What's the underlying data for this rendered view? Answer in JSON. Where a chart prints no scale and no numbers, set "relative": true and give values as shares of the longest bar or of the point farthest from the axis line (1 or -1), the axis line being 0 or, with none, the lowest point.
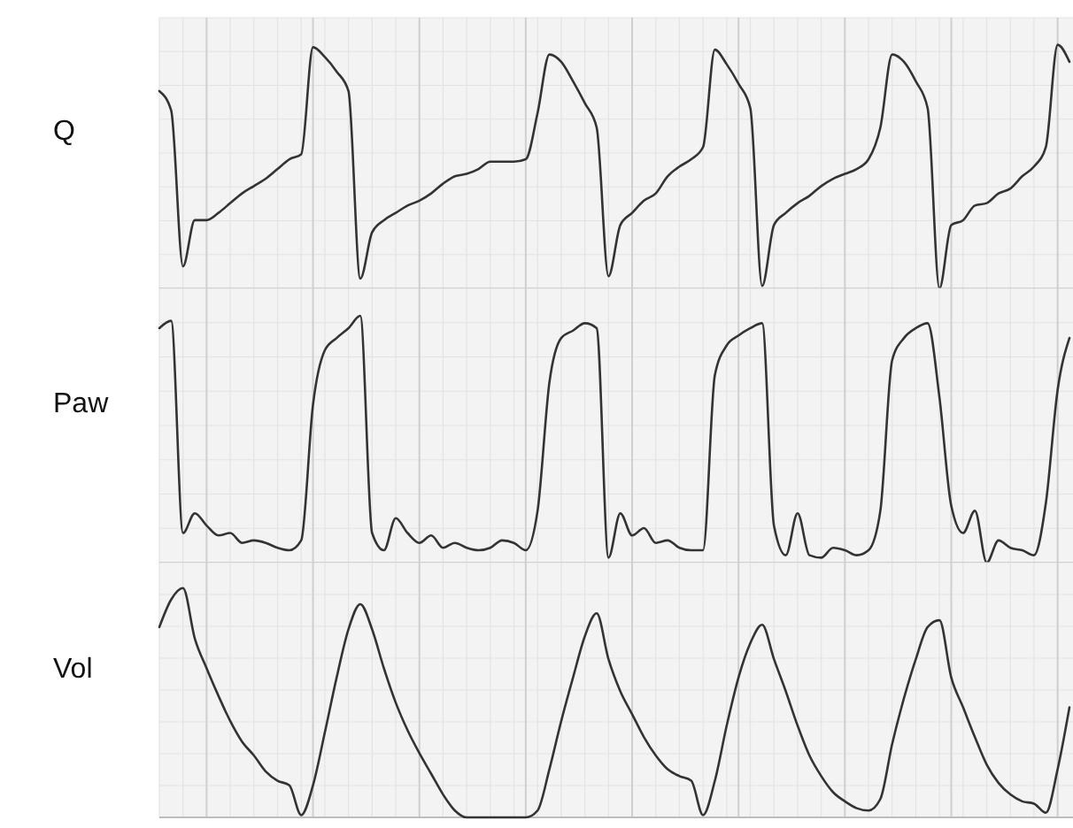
{
  "chart_data": [
    {
      "type": "line",
      "ylabel": "Q",
      "relative": true,
      "grid": true,
      "categories": [
        null,
        null,
        null,
        null,
        null,
        null,
        null,
        null,
        null,
        null,
        null,
        null,
        null,
        null,
        null,
        null,
        null,
        null,
        null,
        null,
        null,
        null,
        null,
        null,
        null,
        null,
        null,
        null,
        null,
        null,
        null,
        null,
        null,
        null,
        null,
        null,
        null,
        null,
        null,
        null,
        null,
        null,
        null,
        null,
        null,
        null,
        null,
        null,
        null,
        null,
        null,
        null,
        null,
        null,
        null,
        null,
        null,
        null,
        null,
        null,
        null,
        null,
        null,
        null,
        null,
        null,
        null,
        null,
        null,
        null,
        null,
        null,
        null,
        null,
        null,
        null,
        null,
        null
      ],
      "series": [
        {
          "color": "#333333",
          "values": [
            0.81,
            0.73,
            0.09,
            0.28,
            0.28,
            0.31,
            0.35,
            0.39,
            0.42,
            0.45,
            0.49,
            0.53,
            0.55,
            0.99,
            0.95,
            0.89,
            0.81,
            0.04,
            0.23,
            0.28,
            0.31,
            0.34,
            0.36,
            0.39,
            0.43,
            0.46,
            0.47,
            0.49,
            0.52,
            0.52,
            0.52,
            0.53,
            0.72,
            0.96,
            0.93,
            0.85,
            0.76,
            0.66,
            0.05,
            0.26,
            0.31,
            0.36,
            0.39,
            0.46,
            0.5,
            0.53,
            0.58,
            0.98,
            0.92,
            0.84,
            0.74,
            0.01,
            0.26,
            0.31,
            0.35,
            0.38,
            0.42,
            0.45,
            0.47,
            0.49,
            0.53,
            0.66,
            0.96,
            0.93,
            0.85,
            0.74,
            0,
            0.26,
            0.28,
            0.34,
            0.35,
            0.39,
            0.41,
            0.46,
            0.5,
            0.58,
            1,
            0.93
          ]
        }
      ]
    },
    {
      "type": "line",
      "ylabel": "Paw",
      "relative": true,
      "grid": true,
      "categories": [
        null,
        null,
        null,
        null,
        null,
        null,
        null,
        null,
        null,
        null,
        null,
        null,
        null,
        null,
        null,
        null,
        null,
        null,
        null,
        null,
        null,
        null,
        null,
        null,
        null,
        null,
        null,
        null,
        null,
        null,
        null,
        null,
        null,
        null,
        null,
        null,
        null,
        null,
        null,
        null,
        null,
        null,
        null,
        null,
        null,
        null,
        null,
        null,
        null,
        null,
        null,
        null,
        null,
        null,
        null,
        null,
        null,
        null,
        null,
        null,
        null,
        null,
        null,
        null,
        null,
        null,
        null,
        null,
        null,
        null,
        null,
        null,
        null,
        null,
        null,
        null,
        null,
        null
      ],
      "series": [
        {
          "color": "#333333",
          "values": [
            0.95,
            0.98,
            0.12,
            0.2,
            0.15,
            0.11,
            0.12,
            0.08,
            0.09,
            0.08,
            0.06,
            0.05,
            0.09,
            0.64,
            0.86,
            0.91,
            0.95,
            1,
            0.12,
            0.05,
            0.18,
            0.12,
            0.08,
            0.11,
            0.06,
            0.08,
            0.06,
            0.05,
            0.06,
            0.09,
            0.08,
            0.05,
            0.21,
            0.73,
            0.91,
            0.94,
            0.97,
            0.95,
            0.02,
            0.2,
            0.11,
            0.14,
            0.08,
            0.09,
            0.06,
            0.05,
            0.05,
            0.76,
            0.88,
            0.92,
            0.95,
            0.97,
            0.15,
            0.03,
            0.2,
            0.03,
            0.02,
            0.06,
            0.05,
            0.03,
            0.05,
            0.21,
            0.82,
            0.91,
            0.95,
            0.97,
            0.67,
            0.23,
            0.12,
            0.21,
            0,
            0.09,
            0.06,
            0.05,
            0.03,
            0.24,
            0.7,
            0.91
          ]
        }
      ]
    },
    {
      "type": "line",
      "ylabel": "Vol",
      "relative": true,
      "grid": true,
      "categories": [
        null,
        null,
        null,
        null,
        null,
        null,
        null,
        null,
        null,
        null,
        null,
        null,
        null,
        null,
        null,
        null,
        null,
        null,
        null,
        null,
        null,
        null,
        null,
        null,
        null,
        null,
        null,
        null,
        null,
        null,
        null,
        null,
        null,
        null,
        null,
        null,
        null,
        null,
        null,
        null,
        null,
        null,
        null,
        null,
        null,
        null,
        null,
        null,
        null,
        null,
        null,
        null,
        null,
        null,
        null,
        null,
        null,
        null,
        null,
        null,
        null,
        null,
        null,
        null,
        null,
        null,
        null,
        null,
        null,
        null,
        null,
        null,
        null,
        null,
        null,
        null,
        null,
        null
      ],
      "series": [
        {
          "color": "#333333",
          "values": [
            0.83,
            0.95,
            1,
            0.78,
            0.65,
            0.53,
            0.42,
            0.33,
            0.27,
            0.2,
            0.16,
            0.14,
            0.01,
            0.14,
            0.37,
            0.61,
            0.82,
            0.93,
            0.82,
            0.65,
            0.5,
            0.38,
            0.28,
            0.19,
            0.1,
            0.03,
            0,
            0,
            0,
            0,
            0,
            0,
            0.03,
            0.21,
            0.42,
            0.61,
            0.79,
            0.89,
            0.69,
            0.55,
            0.45,
            0.35,
            0.27,
            0.21,
            0.18,
            0.16,
            0.01,
            0.16,
            0.4,
            0.61,
            0.76,
            0.84,
            0.69,
            0.55,
            0.4,
            0.27,
            0.18,
            0.11,
            0.07,
            0.04,
            0.03,
            0.08,
            0.32,
            0.52,
            0.69,
            0.83,
            0.86,
            0.61,
            0.48,
            0.35,
            0.23,
            0.15,
            0.1,
            0.07,
            0.06,
            0.02,
            0.21,
            0.48
          ]
        }
      ]
    }
  ]
}
